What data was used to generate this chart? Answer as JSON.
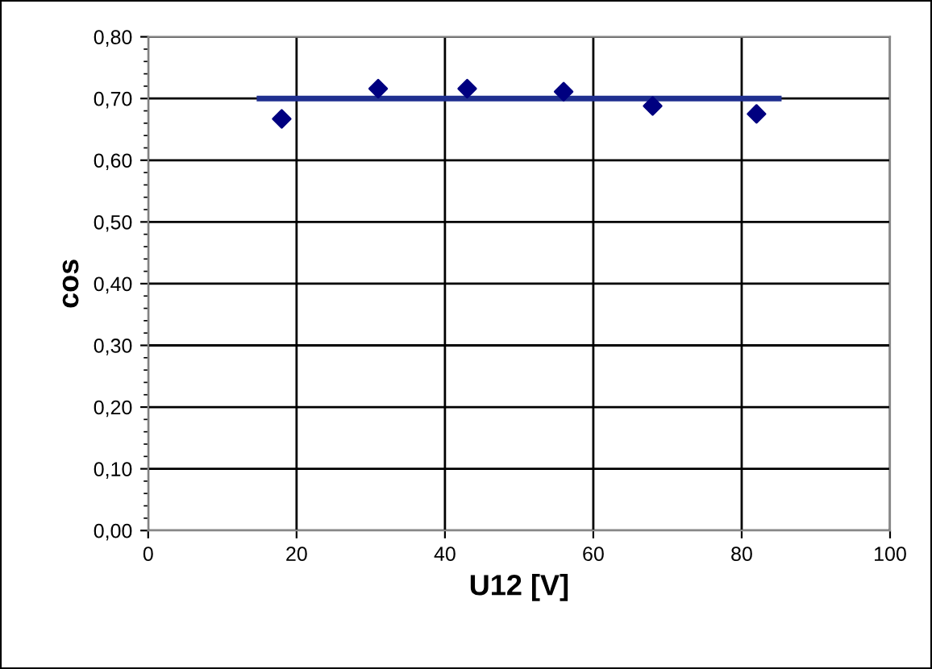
{
  "chart_data": {
    "type": "scatter",
    "xlabel": "U12 [V]",
    "ylabel": "cos",
    "x": [
      18,
      31,
      43,
      56,
      68,
      82
    ],
    "series": [
      {
        "color": "#000080",
        "marker": "diamond",
        "values": [
          0.667,
          0.716,
          0.716,
          0.711,
          0.688,
          0.675
        ]
      },
      {
        "type": "line",
        "color": "#1f2f8f",
        "marker": "none",
        "line_style": "solid",
        "x": [
          15,
          85
        ],
        "values": [
          0.7,
          0.7
        ]
      }
    ],
    "xlim": [
      0,
      100
    ],
    "xticks": [
      0,
      20,
      40,
      60,
      80,
      100
    ],
    "ylim": [
      0,
      0.8
    ],
    "yticks": [
      {
        "value": 0,
        "label": "0,00"
      },
      {
        "value": 0.1,
        "label": "0,10"
      },
      {
        "value": 0.2,
        "label": "0,20"
      },
      {
        "value": 0.3,
        "label": "0,30"
      },
      {
        "value": 0.4,
        "label": "0,40"
      },
      {
        "value": 0.5,
        "label": "0,50"
      },
      {
        "value": 0.6,
        "label": "0,60"
      },
      {
        "value": 0.7,
        "label": "0,70"
      },
      {
        "value": 0.8,
        "label": "0,80"
      }
    ],
    "grid": true,
    "legend": false
  }
}
